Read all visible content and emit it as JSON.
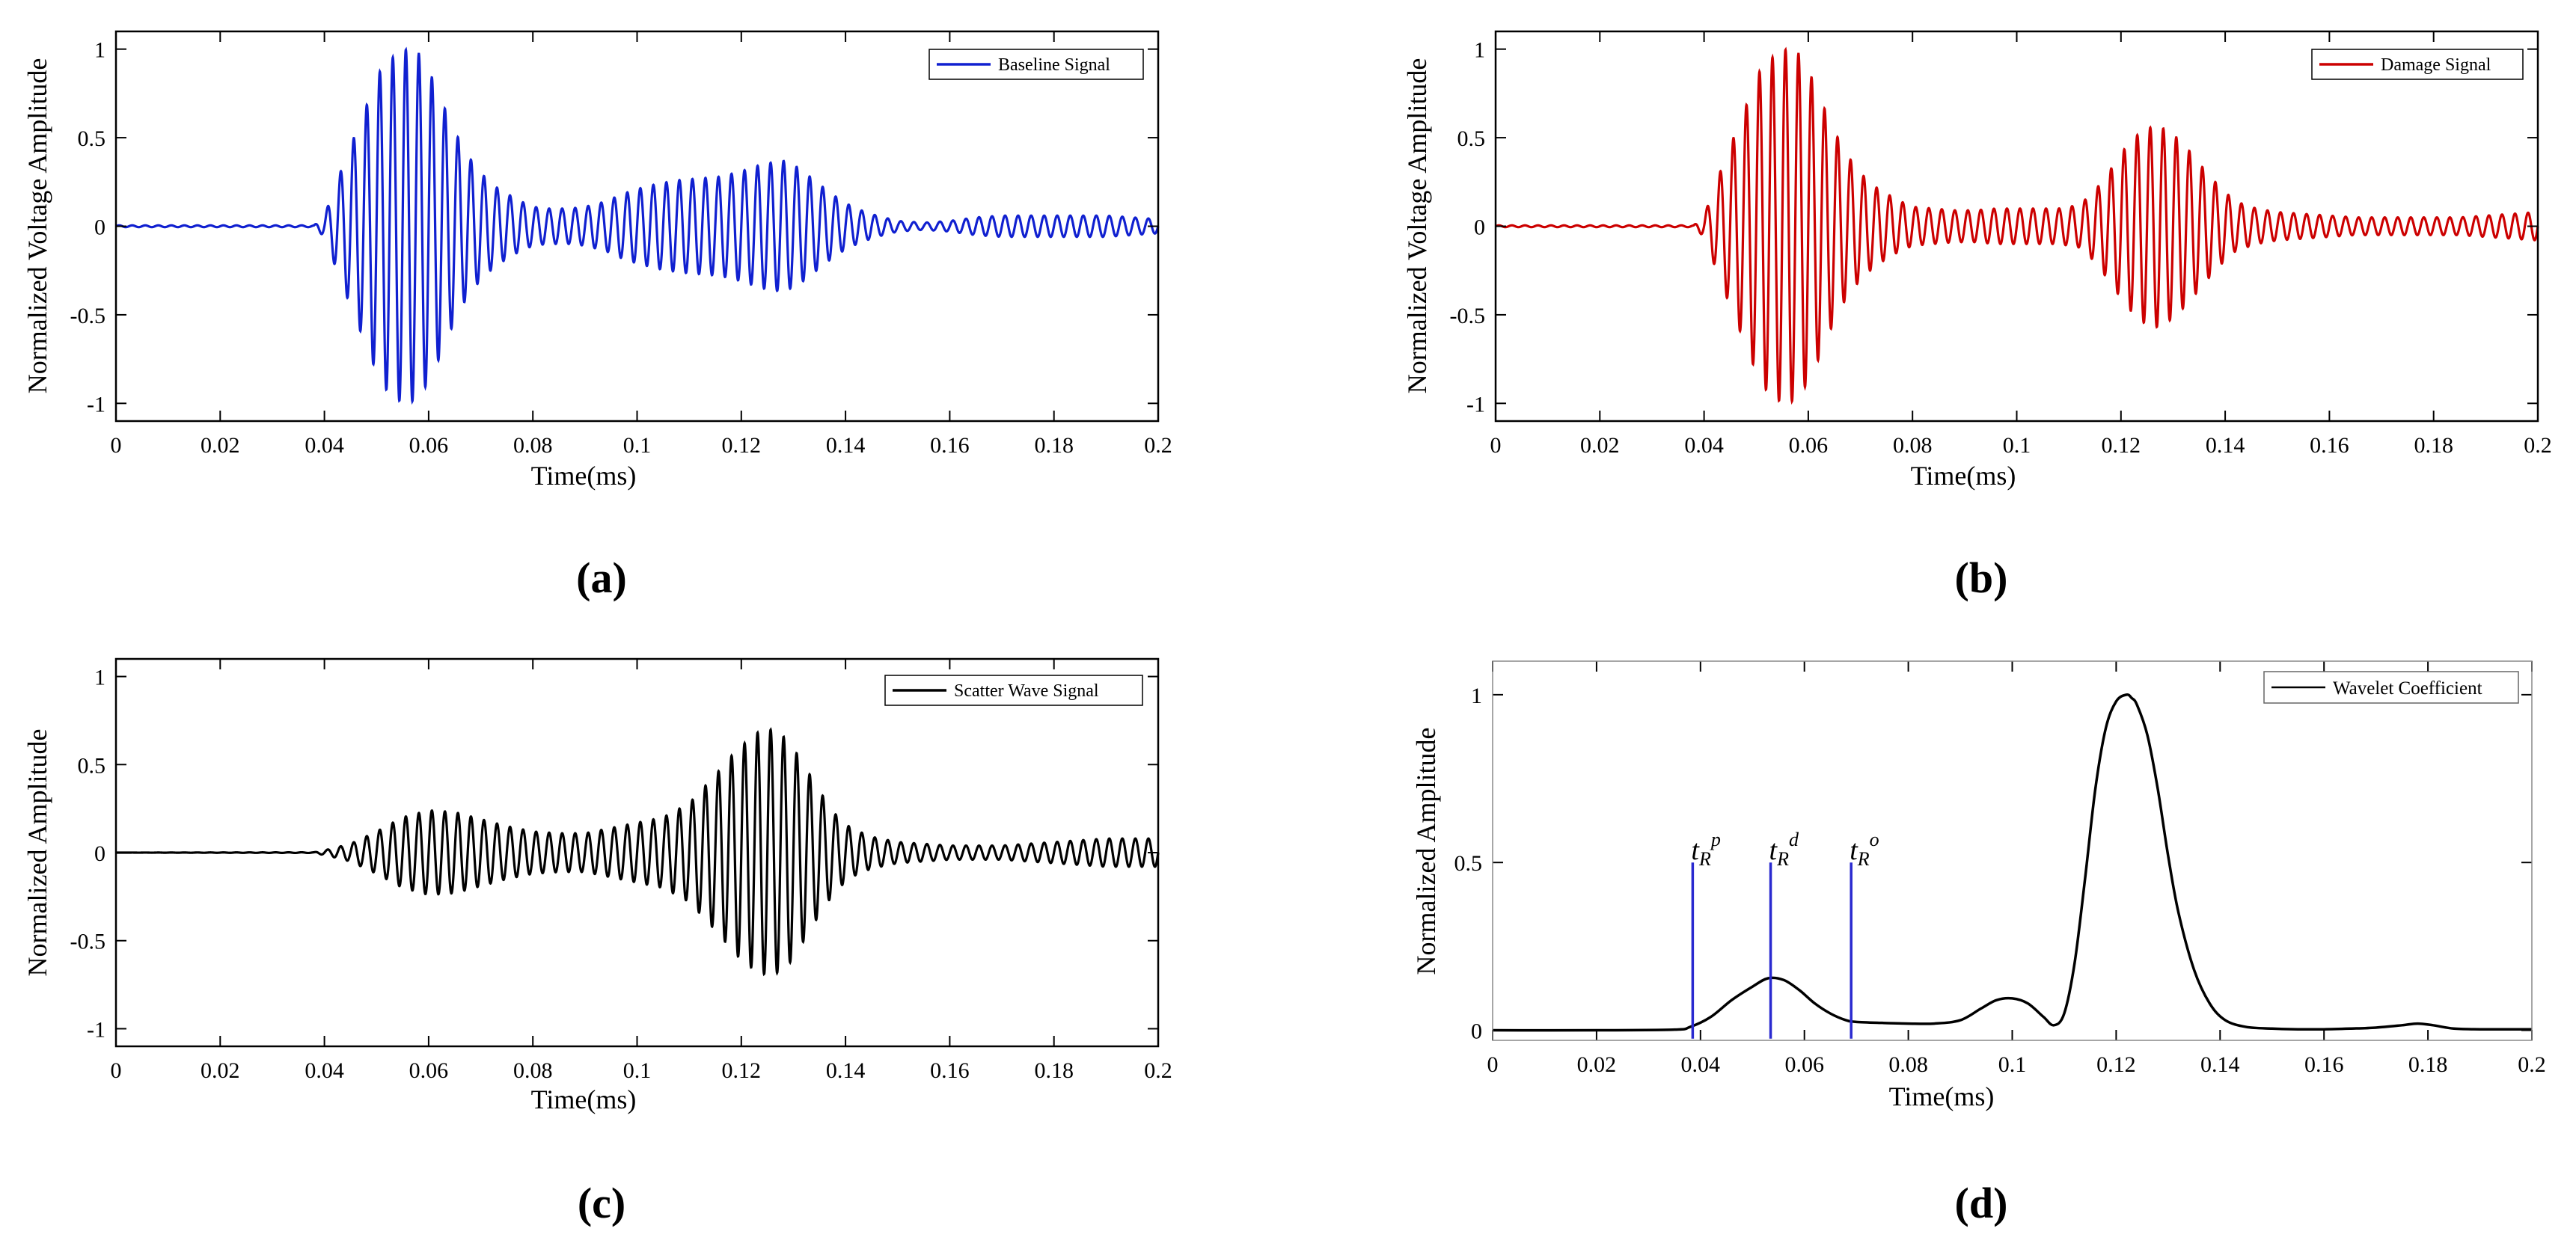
{
  "chart_data": [
    {
      "id": "a",
      "type": "line",
      "caption": "(a)",
      "xlabel": "Time(ms)",
      "ylabel": "Normalized Voltage Amplitude",
      "xlim": [
        0,
        0.2
      ],
      "ylim": [
        -1.1,
        1.1
      ],
      "xticks": [
        "0",
        "0.02",
        "0.04",
        "0.06",
        "0.08",
        "0.1",
        "0.12",
        "0.14",
        "0.16",
        "0.18",
        "0.2"
      ],
      "yticks": [
        "1",
        "0.5",
        "0",
        "-0.5",
        "-1"
      ],
      "ytick_values": [
        1,
        0.5,
        0,
        -0.5,
        -1
      ],
      "legend_position": "top-right",
      "grid": false,
      "series": [
        {
          "name": "Baseline Signal",
          "color": "#1020d0",
          "kind": "oscillation",
          "frequency_cycles_per_ms": 400,
          "x_range": [
            0,
            0.2
          ],
          "envelope": {
            "t": [
              0,
              0.038,
              0.04,
              0.043,
              0.047,
              0.051,
              0.055,
              0.058,
              0.061,
              0.064,
              0.067,
              0.07,
              0.073,
              0.077,
              0.08,
              0.083,
              0.087,
              0.09,
              0.094,
              0.097,
              0.1,
              0.104,
              0.108,
              0.112,
              0.116,
              0.12,
              0.124,
              0.128,
              0.131,
              0.134,
              0.137,
              0.14,
              0.143,
              0.146,
              0.15,
              0.155,
              0.16,
              0.165,
              0.17,
              0.175,
              0.18,
              0.185,
              0.19,
              0.195,
              0.2
            ],
            "a": [
              0.005,
              0.005,
              0.06,
              0.3,
              0.6,
              0.9,
              1.0,
              0.98,
              0.82,
              0.6,
              0.42,
              0.3,
              0.22,
              0.15,
              0.11,
              0.1,
              0.1,
              0.11,
              0.14,
              0.18,
              0.21,
              0.24,
              0.26,
              0.27,
              0.28,
              0.31,
              0.35,
              0.37,
              0.33,
              0.26,
              0.19,
              0.13,
              0.09,
              0.06,
              0.03,
              0.02,
              0.03,
              0.05,
              0.06,
              0.06,
              0.06,
              0.06,
              0.06,
              0.05,
              0.04
            ]
          }
        }
      ]
    },
    {
      "id": "b",
      "type": "line",
      "caption": "(b)",
      "xlabel": "Time(ms)",
      "ylabel": "Normalized Voltage Amplitude",
      "xlim": [
        0,
        0.2
      ],
      "ylim": [
        -1.1,
        1.1
      ],
      "xticks": [
        "0",
        "0.02",
        "0.04",
        "0.06",
        "0.08",
        "0.1",
        "0.12",
        "0.14",
        "0.16",
        "0.18",
        "0.2"
      ],
      "yticks": [
        "1",
        "0.5",
        "0",
        "-0.5",
        "-1"
      ],
      "ytick_values": [
        1,
        0.5,
        0,
        -0.5,
        -1
      ],
      "legend_position": "top-right",
      "grid": false,
      "series": [
        {
          "name": "Damage Signal",
          "color": "#cc0000",
          "kind": "oscillation",
          "frequency_cycles_per_ms": 400,
          "x_range": [
            0,
            0.2
          ],
          "envelope": {
            "t": [
              0,
              0.038,
              0.04,
              0.043,
              0.047,
              0.051,
              0.055,
              0.058,
              0.061,
              0.064,
              0.067,
              0.07,
              0.073,
              0.077,
              0.08,
              0.084,
              0.088,
              0.092,
              0.096,
              0.1,
              0.104,
              0.108,
              0.112,
              0.115,
              0.118,
              0.121,
              0.124,
              0.127,
              0.13,
              0.133,
              0.136,
              0.139,
              0.142,
              0.146,
              0.15,
              0.155,
              0.16,
              0.165,
              0.17,
              0.175,
              0.18,
              0.185,
              0.19,
              0.195,
              0.2
            ],
            "a": [
              0.005,
              0.005,
              0.06,
              0.3,
              0.6,
              0.9,
              1.0,
              0.98,
              0.82,
              0.6,
              0.42,
              0.3,
              0.22,
              0.15,
              0.11,
              0.1,
              0.09,
              0.09,
              0.1,
              0.1,
              0.1,
              0.1,
              0.12,
              0.2,
              0.32,
              0.45,
              0.54,
              0.57,
              0.52,
              0.43,
              0.32,
              0.22,
              0.14,
              0.1,
              0.08,
              0.07,
              0.06,
              0.05,
              0.05,
              0.05,
              0.05,
              0.05,
              0.06,
              0.07,
              0.08
            ]
          }
        }
      ]
    },
    {
      "id": "c",
      "type": "line",
      "caption": "(c)",
      "xlabel": "Time(ms)",
      "ylabel": "Normalized Amplitude",
      "xlim": [
        0,
        0.2
      ],
      "ylim": [
        -1.1,
        1.1
      ],
      "xticks": [
        "0",
        "0.02",
        "0.04",
        "0.06",
        "0.08",
        "0.1",
        "0.12",
        "0.14",
        "0.16",
        "0.18",
        "0.2"
      ],
      "yticks": [
        "1",
        "0.5",
        "0",
        "-0.5",
        "-1"
      ],
      "ytick_values": [
        1,
        0.5,
        0,
        -0.5,
        -1
      ],
      "legend_position": "top-right",
      "grid": false,
      "series": [
        {
          "name": "Scatter Wave Signal",
          "color": "#000000",
          "kind": "oscillation",
          "frequency_cycles_per_ms": 400,
          "x_range": [
            0,
            0.2
          ],
          "envelope": {
            "t": [
              0,
              0.038,
              0.041,
              0.045,
              0.05,
              0.055,
              0.06,
              0.065,
              0.07,
              0.075,
              0.08,
              0.085,
              0.09,
              0.095,
              0.1,
              0.105,
              0.11,
              0.115,
              0.119,
              0.123,
              0.126,
              0.129,
              0.132,
              0.135,
              0.138,
              0.141,
              0.145,
              0.15,
              0.155,
              0.16,
              0.165,
              0.17,
              0.175,
              0.18,
              0.185,
              0.19,
              0.195,
              0.2
            ],
            "a": [
              0,
              0.002,
              0.02,
              0.05,
              0.12,
              0.2,
              0.24,
              0.23,
              0.19,
              0.15,
              0.12,
              0.11,
              0.11,
              0.14,
              0.17,
              0.2,
              0.28,
              0.44,
              0.58,
              0.68,
              0.7,
              0.64,
              0.5,
              0.35,
              0.22,
              0.14,
              0.09,
              0.06,
              0.05,
              0.04,
              0.04,
              0.04,
              0.05,
              0.06,
              0.07,
              0.08,
              0.08,
              0.08
            ]
          }
        }
      ]
    },
    {
      "id": "d",
      "type": "line",
      "caption": "(d)",
      "xlabel": "Time(ms)",
      "ylabel": "Normalized Amplitude",
      "xlim": [
        0,
        0.2
      ],
      "ylim": [
        -0.03,
        1.1
      ],
      "xticks": [
        "0",
        "0.02",
        "0.04",
        "0.06",
        "0.08",
        "0.1",
        "0.12",
        "0.14",
        "0.16",
        "0.18",
        "0.2"
      ],
      "yticks": [
        "1",
        "0.5",
        "0"
      ],
      "ytick_values": [
        1,
        0.5,
        0
      ],
      "legend_position": "top-right",
      "grid": false,
      "series": [
        {
          "name": "Wavelet Coefficient",
          "color": "#000000",
          "kind": "points",
          "x": [
            0,
            0.02,
            0.035,
            0.038,
            0.042,
            0.046,
            0.05,
            0.053,
            0.056,
            0.059,
            0.062,
            0.065,
            0.068,
            0.07,
            0.075,
            0.08,
            0.085,
            0.09,
            0.094,
            0.097,
            0.1,
            0.103,
            0.106,
            0.108,
            0.11,
            0.112,
            0.114,
            0.116,
            0.118,
            0.12,
            0.122,
            0.123,
            0.124,
            0.126,
            0.128,
            0.13,
            0.132,
            0.135,
            0.138,
            0.141,
            0.145,
            0.15,
            0.155,
            0.16,
            0.165,
            0.17,
            0.175,
            0.178,
            0.181,
            0.185,
            0.19,
            0.195,
            0.2
          ],
          "y": [
            0,
            0,
            0.002,
            0.01,
            0.04,
            0.09,
            0.13,
            0.155,
            0.15,
            0.12,
            0.08,
            0.05,
            0.03,
            0.025,
            0.022,
            0.02,
            0.02,
            0.03,
            0.065,
            0.09,
            0.095,
            0.08,
            0.04,
            0.015,
            0.05,
            0.2,
            0.45,
            0.72,
            0.9,
            0.98,
            1.0,
            0.99,
            0.97,
            0.88,
            0.72,
            0.52,
            0.35,
            0.18,
            0.08,
            0.03,
            0.01,
            0.005,
            0.003,
            0.003,
            0.005,
            0.008,
            0.015,
            0.02,
            0.015,
            0.005,
            0.003,
            0.003,
            0.003
          ]
        }
      ],
      "markers": [
        {
          "x": 0.0385,
          "y_top": 0.5,
          "color": "#2a2ad0",
          "label_main": "t",
          "label_sub": "R",
          "label_sup": "p"
        },
        {
          "x": 0.0535,
          "y_top": 0.5,
          "color": "#2a2ad0",
          "label_main": "t",
          "label_sub": "R",
          "label_sup": "d"
        },
        {
          "x": 0.069,
          "y_top": 0.5,
          "color": "#2a2ad0",
          "label_main": "t",
          "label_sub": "R",
          "label_sup": "o"
        }
      ]
    }
  ]
}
